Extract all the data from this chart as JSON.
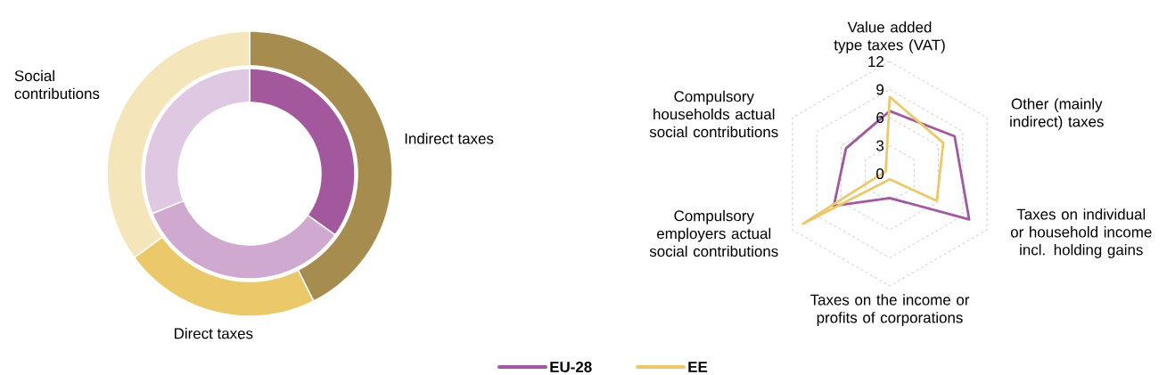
{
  "chart_data": [
    {
      "type": "donut",
      "categories": [
        "Indirect taxes",
        "Direct taxes",
        "Social contributions"
      ],
      "series": [
        {
          "values": [
            34.9,
            33.9,
            31.2
          ],
          "colors": [
            "#a3589e",
            "#cfa9d0",
            "#dfc8e2"
          ]
        },
        {
          "values": [
            42.6,
            22.4,
            35.0
          ],
          "colors": [
            "#a68d4f",
            "#ebc96b",
            "#f4e5ba"
          ]
        }
      ]
    },
    {
      "type": "radar",
      "categories": [
        "Value added type taxes (VAT)",
        "Other (mainly indirect) taxes",
        "Taxes on individual or household income incl. holding gains",
        "Taxes on the income or profits of corporations",
        "Compulsory employers actual social contributions",
        "Compulsory households actual social contributions"
      ],
      "series": [
        {
          "name": "EU-28",
          "color": "#a0599f",
          "values": [
            6.7,
            8.0,
            9.8,
            2.6,
            6.9,
            5.4
          ]
        },
        {
          "name": "EE",
          "color": "#ebc96b",
          "values": [
            8.2,
            6.6,
            5.8,
            0.6,
            10.7,
            0.5
          ]
        }
      ],
      "ylim": [
        0,
        12
      ],
      "yticks": [
        0,
        3,
        6,
        9,
        12
      ],
      "grid": true,
      "legend": "bottom",
      "line_style": "solid"
    }
  ]
}
